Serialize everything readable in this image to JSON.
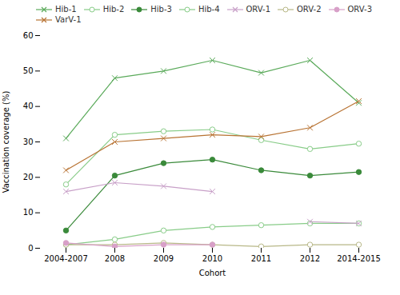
{
  "chart_data": {
    "type": "line",
    "categories": [
      "2004-2007",
      "2008",
      "2009",
      "2010",
      "2011",
      "2012",
      "2014-2015"
    ],
    "xlabel": "Cohort",
    "ylabel": "Vaccination coverage (%)",
    "ylim": [
      0,
      60
    ],
    "yticks": [
      0,
      10,
      20,
      30,
      40,
      50,
      60
    ],
    "grid": false,
    "legend": "top-left",
    "series": [
      {
        "name": "Hib-1",
        "color": "#5aaa5a",
        "marker": "x",
        "values": [
          31,
          48,
          50,
          53,
          49.5,
          53,
          41
        ]
      },
      {
        "name": "Hib-2",
        "color": "#88cc88",
        "marker": "open-circle",
        "values": [
          18,
          32,
          33,
          33.5,
          30.5,
          28,
          29.5
        ]
      },
      {
        "name": "Hib-3",
        "color": "#3a8a3a",
        "marker": "circle",
        "values": [
          5,
          20.5,
          24,
          25,
          22,
          20.5,
          21.5
        ]
      },
      {
        "name": "Hib-4",
        "color": "#88cc88",
        "marker": "open-circle",
        "values": [
          1,
          2.5,
          5,
          6,
          6.5,
          7,
          7
        ]
      },
      {
        "name": "ORV-1",
        "color": "#c8a0c8",
        "marker": "x",
        "values": [
          16,
          18.5,
          17.5,
          16,
          null,
          7.5,
          7
        ]
      },
      {
        "name": "ORV-2",
        "color": "#b8b888",
        "marker": "open-circle",
        "values": [
          1,
          1,
          1.5,
          1,
          0.5,
          1,
          1
        ]
      },
      {
        "name": "ORV-3",
        "color": "#d8a0c8",
        "marker": "circle",
        "values": [
          1.5,
          0.5,
          1,
          1,
          null,
          null,
          null
        ]
      },
      {
        "name": "VarV-1",
        "color": "#b87333",
        "marker": "x",
        "values": [
          22,
          30,
          31,
          32,
          31.5,
          34,
          41.5
        ]
      }
    ]
  }
}
